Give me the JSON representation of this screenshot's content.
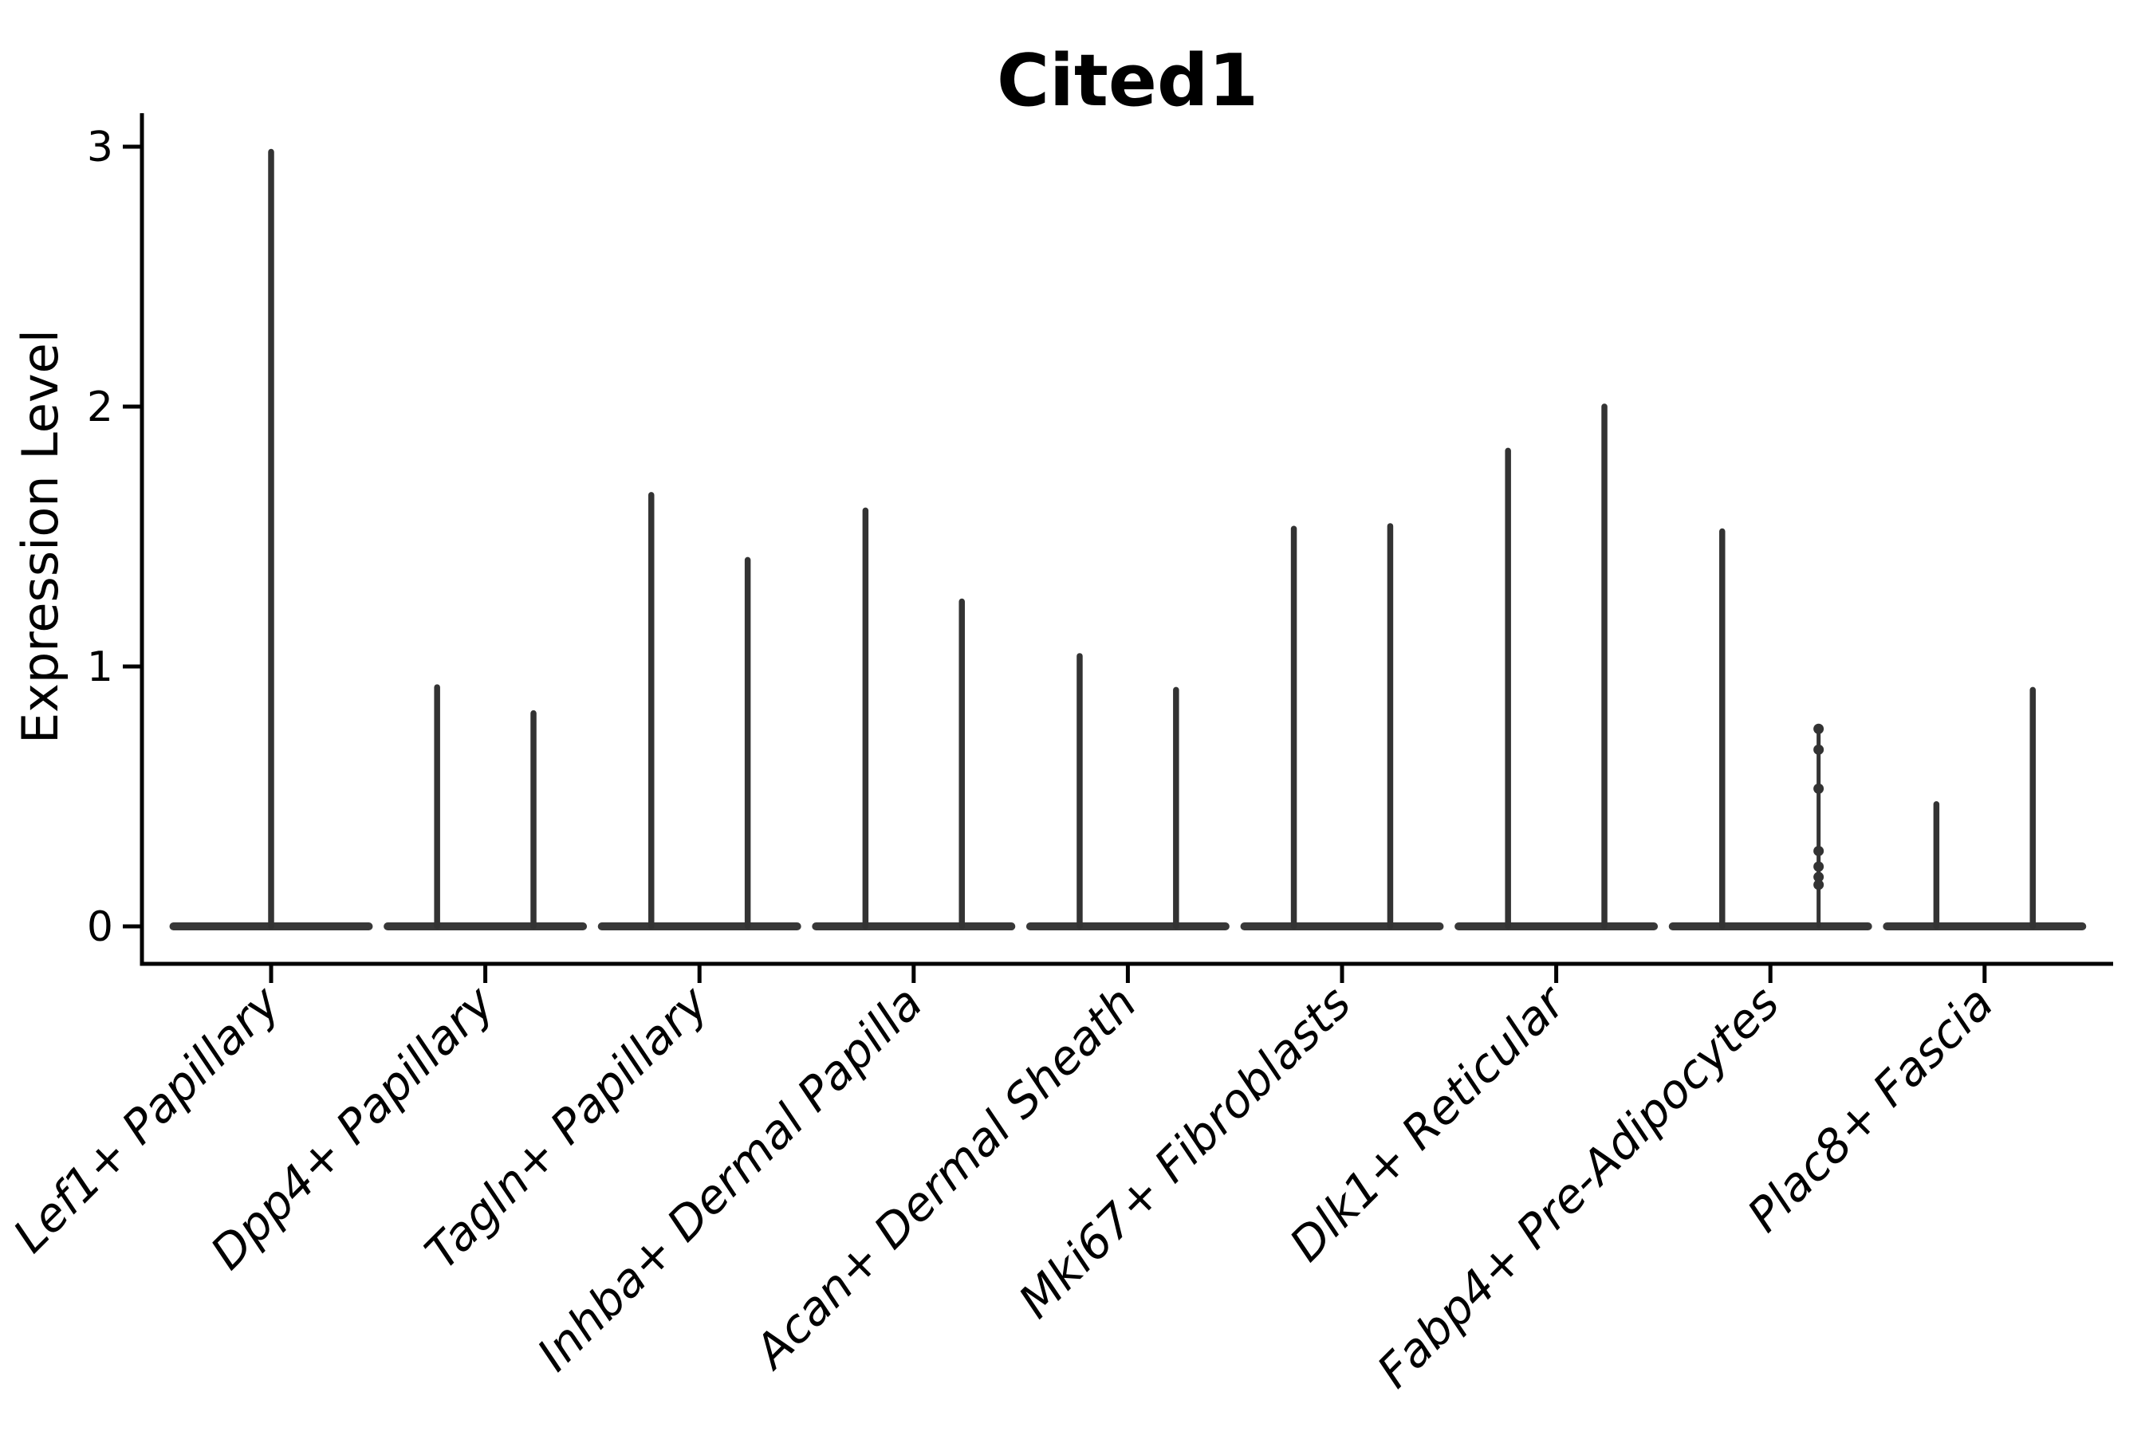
{
  "colors": {
    "background": "#ffffff",
    "violin_stroke": "#333333",
    "violin_base": "#383838",
    "axis": "#000000",
    "text": "#000000"
  },
  "chart_data": {
    "type": "violin",
    "title": "Cited1",
    "xlabel": "",
    "ylabel": "Expression Level",
    "yticks": [
      0,
      1,
      2,
      3
    ],
    "ylim": [
      -0.14,
      3.13
    ],
    "grid": false,
    "legend": "none",
    "categories": [
      "Lef1+ Papillary",
      "Dpp4+ Papillary",
      "Tagln+ Papillary",
      "Inhba+ Dermal Papilla",
      "Acan+ Dermal Sheath",
      "Mki67+ Fibroblasts",
      "Dlk1+ Reticular",
      "Fabp4+ Pre-Adipocytes",
      "Plac8+ Fascia"
    ],
    "base_halfwidth": 0.456,
    "violins": [
      {
        "category": "Lef1+ Papillary",
        "peaks": [
          {
            "offset": 0.0,
            "max": 2.98
          }
        ]
      },
      {
        "category": "Dpp4+ Papillary",
        "peaks": [
          {
            "offset": -0.225,
            "max": 0.92
          },
          {
            "offset": 0.225,
            "max": 0.82
          }
        ]
      },
      {
        "category": "Tagln+ Papillary",
        "peaks": [
          {
            "offset": -0.225,
            "max": 1.66
          },
          {
            "offset": 0.225,
            "max": 1.41
          }
        ]
      },
      {
        "category": "Inhba+ Dermal Papilla",
        "peaks": [
          {
            "offset": -0.225,
            "max": 1.6
          },
          {
            "offset": 0.225,
            "max": 1.25
          }
        ]
      },
      {
        "category": "Acan+ Dermal Sheath",
        "peaks": [
          {
            "offset": -0.225,
            "max": 1.04
          },
          {
            "offset": 0.225,
            "max": 0.91
          }
        ]
      },
      {
        "category": "Mki67+ Fibroblasts",
        "peaks": [
          {
            "offset": -0.225,
            "max": 1.53
          },
          {
            "offset": 0.225,
            "max": 1.54
          }
        ]
      },
      {
        "category": "Dlk1+ Reticular",
        "peaks": [
          {
            "offset": -0.225,
            "max": 1.83
          },
          {
            "offset": 0.225,
            "max": 2.0
          }
        ]
      },
      {
        "category": "Fabp4+ Pre-Adipocytes",
        "peaks": [
          {
            "offset": -0.225,
            "max": 1.52
          },
          {
            "offset": 0.225,
            "max": 0.76,
            "thin": true,
            "points": [
              0.76,
              0.68,
              0.53,
              0.29,
              0.23,
              0.19,
              0.16
            ]
          }
        ]
      },
      {
        "category": "Plac8+ Fascia",
        "peaks": [
          {
            "offset": -0.225,
            "max": 0.47
          },
          {
            "offset": 0.225,
            "max": 0.91
          }
        ]
      }
    ]
  }
}
